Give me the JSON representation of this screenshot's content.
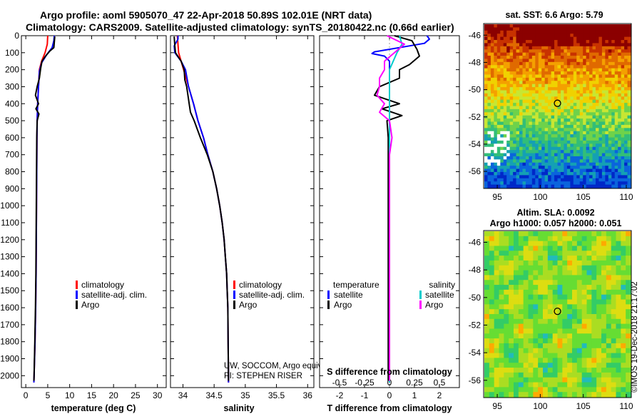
{
  "chart_data": [
    {
      "type": "line",
      "title": "Argo profile: aoml 5905070_47 22-Apr-2018 50.89S 102.01E (NRT data)",
      "subtitle": "Climatology: CARS2009. Satellite-adjusted climatology: synTS_20180422.nc (0.66d earlier)",
      "xlabel": "temperature (deg C)",
      "xlim": [
        -1,
        32
      ],
      "ylim": [
        2070,
        0
      ],
      "xticks": [
        "0",
        "5",
        "10",
        "15",
        "20",
        "25",
        "30"
      ],
      "yticks": [
        "0",
        "100",
        "200",
        "300",
        "400",
        "500",
        "600",
        "700",
        "800",
        "900",
        "1000",
        "1100",
        "1200",
        "1300",
        "1400",
        "1500",
        "1600",
        "1700",
        "1800",
        "1900",
        "2000"
      ],
      "legend": [
        "climatology",
        "satellite-adj. clim.",
        "Argo"
      ],
      "series": [
        {
          "name": "climatology",
          "color": "#ff0000",
          "points": [
            [
              5.0,
              0
            ],
            [
              4.9,
              50
            ],
            [
              4.4,
              100
            ],
            [
              3.6,
              150
            ],
            [
              3.1,
              200
            ],
            [
              2.9,
              300
            ],
            [
              2.7,
              400
            ],
            [
              2.6,
              500
            ],
            [
              2.55,
              600
            ],
            [
              2.5,
              800
            ],
            [
              2.45,
              1000
            ],
            [
              2.4,
              1200
            ],
            [
              2.35,
              1400
            ],
            [
              2.25,
              1600
            ],
            [
              2.1,
              1800
            ],
            [
              1.9,
              2000
            ],
            [
              1.85,
              2040
            ]
          ]
        },
        {
          "name": "satellite-adj. clim.",
          "color": "#0000ff",
          "points": [
            [
              6.5,
              0
            ],
            [
              6.4,
              30
            ],
            [
              6.0,
              70
            ],
            [
              4.8,
              110
            ],
            [
              3.6,
              160
            ],
            [
              3.1,
              210
            ],
            [
              2.9,
              300
            ],
            [
              2.7,
              400
            ],
            [
              2.6,
              500
            ],
            [
              2.55,
              600
            ],
            [
              2.5,
              800
            ],
            [
              2.45,
              1000
            ],
            [
              2.4,
              1200
            ],
            [
              2.35,
              1400
            ],
            [
              2.25,
              1600
            ],
            [
              2.1,
              1800
            ],
            [
              1.9,
              2000
            ],
            [
              1.85,
              2040
            ]
          ]
        },
        {
          "name": "Argo",
          "color": "#000000",
          "points": [
            [
              6.6,
              5
            ],
            [
              6.5,
              40
            ],
            [
              6.4,
              70
            ],
            [
              5.5,
              90
            ],
            [
              4.5,
              120
            ],
            [
              3.7,
              150
            ],
            [
              3.4,
              190
            ],
            [
              3.1,
              250
            ],
            [
              2.6,
              300
            ],
            [
              2.2,
              350
            ],
            [
              2.9,
              400
            ],
            [
              2.3,
              430
            ],
            [
              3.0,
              460
            ],
            [
              2.6,
              500
            ],
            [
              2.5,
              600
            ],
            [
              2.45,
              800
            ],
            [
              2.4,
              1000
            ],
            [
              2.35,
              1200
            ],
            [
              2.3,
              1400
            ],
            [
              2.2,
              1600
            ],
            [
              2.05,
              1800
            ],
            [
              1.9,
              2000
            ],
            [
              1.85,
              2030
            ]
          ]
        }
      ]
    },
    {
      "type": "line",
      "xlabel": "salinity",
      "xlim": [
        33.8,
        36.1
      ],
      "ylim": [
        2070,
        0
      ],
      "xticks": [
        "34",
        "34.5",
        "35",
        "35.5",
        "36"
      ],
      "legend": [
        "climatology",
        "satellite-adj. clim.",
        "Argo"
      ],
      "annotations": [
        "UW, SOCCOM, Argo equivalent",
        "PI: STEPHEN RISER"
      ],
      "series": [
        {
          "name": "climatology",
          "color": "#ff0000",
          "points": [
            [
              33.91,
              0
            ],
            [
              33.93,
              100
            ],
            [
              34.01,
              200
            ],
            [
              34.09,
              300
            ],
            [
              34.17,
              400
            ],
            [
              34.24,
              500
            ],
            [
              34.33,
              600
            ],
            [
              34.4,
              700
            ],
            [
              34.48,
              800
            ],
            [
              34.54,
              900
            ],
            [
              34.59,
              1000
            ],
            [
              34.63,
              1100
            ],
            [
              34.66,
              1200
            ],
            [
              34.68,
              1300
            ],
            [
              34.7,
              1400
            ],
            [
              34.71,
              1500
            ],
            [
              34.72,
              1600
            ],
            [
              34.725,
              1800
            ],
            [
              34.73,
              2000
            ],
            [
              34.73,
              2040
            ]
          ]
        },
        {
          "name": "satellite-adj. clim.",
          "color": "#0000ff",
          "points": [
            [
              33.92,
              0
            ],
            [
              33.92,
              20
            ],
            [
              33.86,
              60
            ],
            [
              33.87,
              100
            ],
            [
              33.97,
              150
            ],
            [
              34.04,
              200
            ],
            [
              34.09,
              300
            ],
            [
              34.17,
              400
            ],
            [
              34.24,
              500
            ],
            [
              34.33,
              600
            ],
            [
              34.4,
              700
            ],
            [
              34.48,
              800
            ],
            [
              34.54,
              900
            ],
            [
              34.59,
              1000
            ],
            [
              34.63,
              1100
            ],
            [
              34.66,
              1200
            ],
            [
              34.68,
              1300
            ],
            [
              34.7,
              1400
            ],
            [
              34.71,
              1500
            ],
            [
              34.72,
              1600
            ],
            [
              34.725,
              1800
            ],
            [
              34.73,
              2000
            ],
            [
              34.73,
              2040
            ]
          ]
        },
        {
          "name": "Argo",
          "color": "#000000",
          "points": [
            [
              33.86,
              5
            ],
            [
              33.87,
              60
            ],
            [
              33.88,
              100
            ],
            [
              33.97,
              150
            ],
            [
              34.02,
              200
            ],
            [
              34.03,
              260
            ],
            [
              34.06,
              300
            ],
            [
              34.1,
              400
            ],
            [
              34.12,
              450
            ],
            [
              34.18,
              500
            ],
            [
              34.28,
              600
            ],
            [
              34.39,
              700
            ],
            [
              34.48,
              800
            ],
            [
              34.54,
              900
            ],
            [
              34.59,
              1000
            ],
            [
              34.63,
              1100
            ],
            [
              34.66,
              1200
            ],
            [
              34.68,
              1300
            ],
            [
              34.7,
              1400
            ],
            [
              34.71,
              1500
            ],
            [
              34.72,
              1600
            ],
            [
              34.725,
              1800
            ],
            [
              34.73,
              2000
            ],
            [
              34.73,
              2030
            ]
          ]
        }
      ]
    },
    {
      "type": "line",
      "xlabel": "T difference from climatology",
      "xlabel_top": "S difference from climatology",
      "xlim": [
        -2.8,
        2.8
      ],
      "ylim": [
        2070,
        0
      ],
      "xticks": [
        "-2",
        "-1",
        "0",
        "1",
        "2"
      ],
      "xticks_salinity": [
        "-0.5",
        "-0.25",
        "0",
        "0.25",
        "0.5"
      ],
      "legend_groups": [
        "temperature",
        "salinity"
      ],
      "legend": [
        "satellite",
        "Argo",
        "satellite",
        "Argo"
      ],
      "series": [
        {
          "name": "temperature satellite",
          "color": "#0000ff",
          "points": [
            [
              1.5,
              0
            ],
            [
              1.6,
              20
            ],
            [
              1.4,
              45
            ],
            [
              0.4,
              70
            ],
            [
              -0.6,
              95
            ],
            [
              -0.7,
              105
            ],
            [
              -0.2,
              120
            ],
            [
              0,
              150
            ],
            [
              0,
              300
            ],
            [
              0,
              600
            ],
            [
              0,
              1000
            ],
            [
              0,
              1500
            ],
            [
              0,
              2040
            ]
          ]
        },
        {
          "name": "temperature Argo",
          "color": "#000000",
          "points": [
            [
              0.2,
              0
            ],
            [
              0.9,
              30
            ],
            [
              1.1,
              80
            ],
            [
              1.2,
              120
            ],
            [
              0.8,
              170
            ],
            [
              0.4,
              200
            ],
            [
              0.4,
              250
            ],
            [
              -0.4,
              300
            ],
            [
              -0.6,
              350
            ],
            [
              0.4,
              400
            ],
            [
              -0.3,
              430
            ],
            [
              0.5,
              470
            ],
            [
              -0.1,
              500
            ],
            [
              -0.05,
              600
            ],
            [
              -0.05,
              1000
            ],
            [
              -0.05,
              1500
            ],
            [
              -0.05,
              2030
            ]
          ]
        },
        {
          "name": "salinity satellite",
          "color": "#00cccc",
          "points": [
            [
              0.4,
              0
            ],
            [
              0.5,
              50
            ],
            [
              0.3,
              100
            ],
            [
              0,
              200
            ],
            [
              0,
              500
            ],
            [
              0,
              1000
            ],
            [
              0,
              1500
            ],
            [
              0,
              2040
            ]
          ]
        },
        {
          "name": "salinity Argo",
          "color": "#ff00ff",
          "points": [
            [
              -0.1,
              0
            ],
            [
              0.6,
              50
            ],
            [
              0.2,
              100
            ],
            [
              -0.2,
              150
            ],
            [
              -0.2,
              200
            ],
            [
              -0.4,
              250
            ],
            [
              -0.4,
              300
            ],
            [
              -0.5,
              350
            ],
            [
              -0.2,
              400
            ],
            [
              -0.4,
              450
            ],
            [
              0,
              500
            ],
            [
              0.1,
              600
            ],
            [
              0,
              700
            ],
            [
              0,
              1000
            ],
            [
              0,
              1500
            ],
            [
              0,
              2030
            ]
          ]
        }
      ]
    },
    {
      "type": "heatmap",
      "title": "sat. SST: 6.6 Argo: 5.79",
      "xticks": [
        "95",
        "100",
        "105",
        "110"
      ],
      "yticks": [
        "-46",
        "-48",
        "-50",
        "-52",
        "-54",
        "-56"
      ],
      "xlim": [
        93.5,
        110.5
      ],
      "ylim": [
        -57.2,
        -45.2
      ],
      "marker": [
        102,
        -51
      ],
      "colormap": [
        "#8b0000",
        "#c83200",
        "#e06a00",
        "#f4a000",
        "#f0d200",
        "#c8e632",
        "#6ed24b",
        "#32be78",
        "#14a0b4",
        "#0a64dc",
        "#0028c8"
      ]
    },
    {
      "type": "heatmap",
      "title": "Altim. SLA: 0.0092",
      "subtitle": "Argo h1000: 0.057 h2000: 0.051",
      "xticks": [
        "95",
        "100",
        "105",
        "110"
      ],
      "yticks": [
        "-46",
        "-48",
        "-50",
        "-52",
        "-54",
        "-56"
      ],
      "xlim": [
        93.5,
        110.5
      ],
      "ylim": [
        -57.2,
        -45.2
      ],
      "marker": [
        102,
        -51
      ],
      "colormap": [
        "#22bbbb",
        "#33cc66",
        "#66dd33",
        "#aadd22",
        "#dddd11",
        "#ffaa00"
      ]
    }
  ],
  "footer": {
    "credit": "©IMOS 19-Dec-2018 21:17:02"
  }
}
